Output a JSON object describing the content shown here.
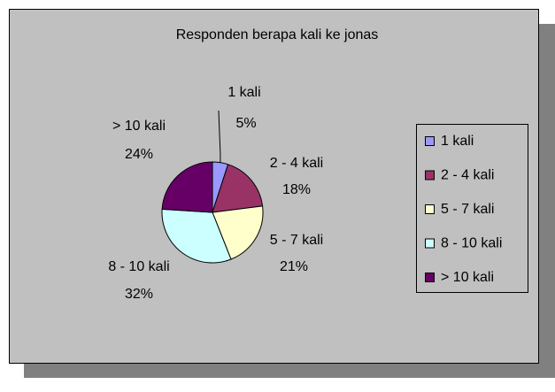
{
  "chart_data": {
    "type": "pie",
    "title": "Responden berapa kali ke jonas",
    "categories": [
      "1 kali",
      "2 - 4 kali",
      "5 - 7 kali",
      "8 - 10 kali",
      "> 10 kali"
    ],
    "values": [
      5,
      18,
      21,
      32,
      24
    ],
    "value_labels": [
      "5%",
      "18%",
      "21%",
      "32%",
      "24%"
    ],
    "colors": [
      "#9999ff",
      "#993366",
      "#ffffcc",
      "#ccffff",
      "#660066"
    ],
    "legend": "right"
  }
}
